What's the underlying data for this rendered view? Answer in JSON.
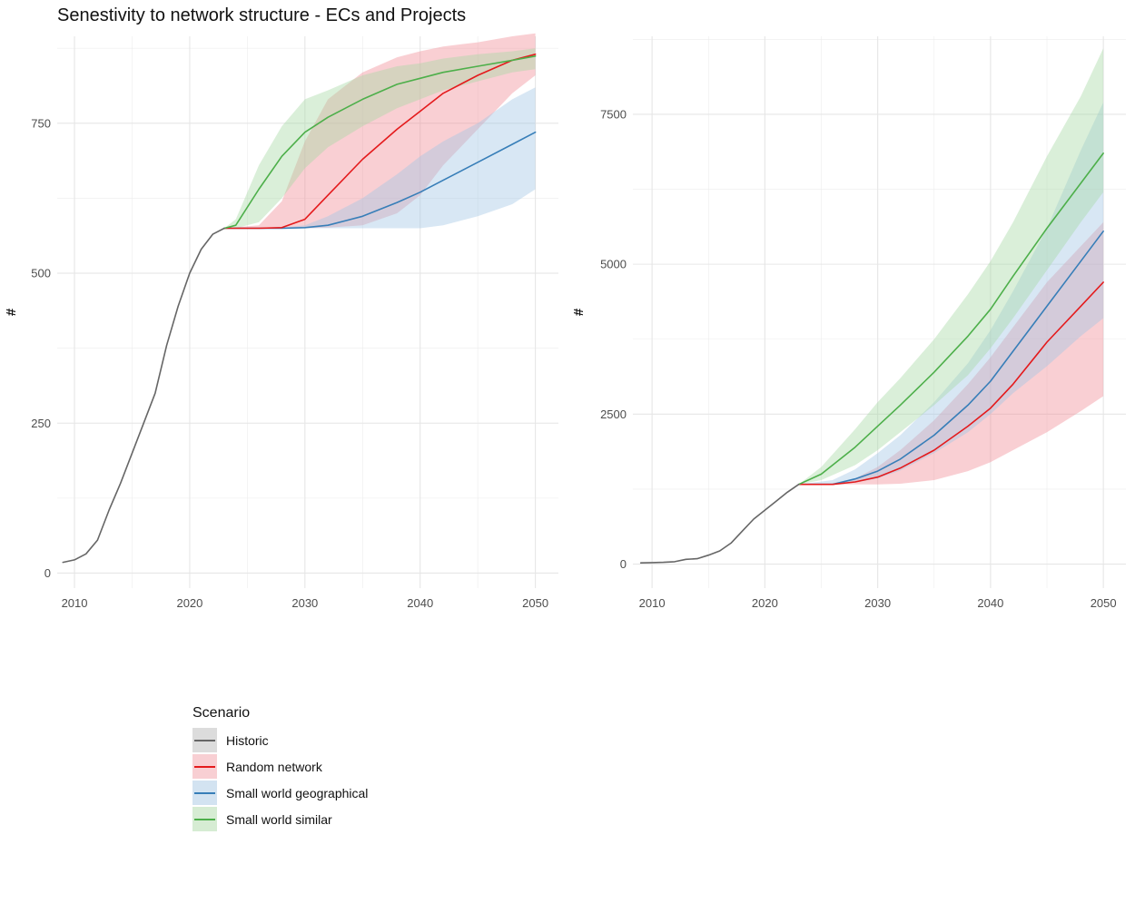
{
  "title": "Senestivity to network structure - ECs and Projects",
  "legend": {
    "title": "Scenario",
    "items": [
      {
        "label": "Historic",
        "color": "#666666",
        "fill": "#dcdcdc"
      },
      {
        "label": "Random network",
        "color": "#e41a1c",
        "fill": "#f8cfd3"
      },
      {
        "label": "Small world geographical",
        "color": "#377eb8",
        "fill": "#d3e3f1"
      },
      {
        "label": "Small world similar",
        "color": "#4daf4a",
        "fill": "#d6ecd3"
      }
    ]
  },
  "chart_data": [
    {
      "type": "line",
      "title": "Senestivity to network structure - ECs and Projects",
      "xlabel": "",
      "ylabel": "#",
      "xlim": [
        2008.5,
        2052
      ],
      "ylim": [
        -25,
        895
      ],
      "xticks": [
        2010,
        2020,
        2030,
        2040,
        2050
      ],
      "yticks": [
        0,
        250,
        500,
        750
      ],
      "grid": true,
      "series": [
        {
          "name": "Historic",
          "color": "#666666",
          "x": [
            2009,
            2010,
            2011,
            2012,
            2013,
            2014,
            2015,
            2016,
            2017,
            2018,
            2019,
            2020,
            2021,
            2022,
            2023
          ],
          "y": [
            18,
            22,
            32,
            55,
            105,
            150,
            200,
            250,
            300,
            380,
            445,
            500,
            540,
            565,
            575
          ]
        },
        {
          "name": "Random network",
          "color": "#e41a1c",
          "x": [
            2023,
            2026,
            2028,
            2030,
            2032,
            2035,
            2038,
            2040,
            2042,
            2045,
            2048,
            2050
          ],
          "y": [
            575,
            575,
            576,
            590,
            630,
            690,
            740,
            770,
            800,
            830,
            855,
            865
          ],
          "lower": [
            575,
            575,
            575,
            575,
            576,
            580,
            600,
            630,
            680,
            740,
            800,
            830
          ],
          "upper": [
            575,
            580,
            620,
            720,
            790,
            835,
            860,
            870,
            878,
            885,
            895,
            900
          ]
        },
        {
          "name": "Small world geographical",
          "color": "#377eb8",
          "x": [
            2023,
            2026,
            2028,
            2030,
            2032,
            2035,
            2038,
            2040,
            2042,
            2045,
            2048,
            2050
          ],
          "y": [
            575,
            575,
            575,
            576,
            580,
            595,
            618,
            635,
            655,
            685,
            715,
            735
          ],
          "lower": [
            575,
            575,
            575,
            575,
            575,
            575,
            575,
            575,
            580,
            595,
            615,
            640
          ],
          "upper": [
            575,
            575,
            576,
            580,
            595,
            625,
            665,
            695,
            720,
            750,
            790,
            810
          ]
        },
        {
          "name": "Small world similar",
          "color": "#4daf4a",
          "x": [
            2023,
            2024,
            2026,
            2028,
            2030,
            2032,
            2035,
            2038,
            2040,
            2042,
            2045,
            2048,
            2050
          ],
          "y": [
            575,
            580,
            640,
            695,
            735,
            760,
            790,
            815,
            825,
            835,
            845,
            855,
            862
          ],
          "lower": [
            575,
            575,
            585,
            625,
            675,
            710,
            745,
            775,
            790,
            805,
            820,
            835,
            840
          ],
          "upper": [
            575,
            590,
            680,
            745,
            790,
            805,
            830,
            845,
            850,
            858,
            865,
            870,
            875
          ]
        }
      ]
    },
    {
      "type": "line",
      "title": "",
      "xlabel": "",
      "ylabel": "#",
      "xlim": [
        2008.3,
        2052
      ],
      "ylim": [
        -400,
        8800
      ],
      "xticks": [
        2010,
        2020,
        2030,
        2040,
        2050
      ],
      "yticks": [
        0,
        2500,
        5000,
        7500
      ],
      "grid": true,
      "series": [
        {
          "name": "Historic",
          "color": "#666666",
          "x": [
            2009,
            2010,
            2011,
            2012,
            2013,
            2014,
            2015,
            2016,
            2017,
            2018,
            2019,
            2020,
            2021,
            2022,
            2023
          ],
          "y": [
            20,
            25,
            30,
            40,
            80,
            90,
            150,
            220,
            350,
            550,
            750,
            900,
            1050,
            1200,
            1330
          ]
        },
        {
          "name": "Random network",
          "color": "#e41a1c",
          "x": [
            2023,
            2026,
            2028,
            2030,
            2032,
            2035,
            2038,
            2040,
            2042,
            2045,
            2048,
            2050
          ],
          "y": [
            1330,
            1330,
            1370,
            1450,
            1600,
            1900,
            2300,
            2600,
            3000,
            3700,
            4300,
            4700
          ],
          "lower": [
            1330,
            1330,
            1330,
            1330,
            1340,
            1400,
            1550,
            1700,
            1900,
            2200,
            2550,
            2800
          ],
          "upper": [
            1330,
            1330,
            1430,
            1620,
            1900,
            2400,
            3000,
            3450,
            3950,
            4700,
            5300,
            5700
          ]
        },
        {
          "name": "Small world geographical",
          "color": "#377eb8",
          "x": [
            2023,
            2026,
            2028,
            2030,
            2032,
            2035,
            2038,
            2040,
            2042,
            2045,
            2048,
            2050
          ],
          "y": [
            1330,
            1330,
            1420,
            1550,
            1750,
            2150,
            2650,
            3050,
            3550,
            4300,
            5050,
            5550
          ],
          "lower": [
            1330,
            1330,
            1360,
            1430,
            1560,
            1850,
            2200,
            2500,
            2850,
            3300,
            3800,
            4100
          ],
          "upper": [
            1330,
            1400,
            1580,
            1850,
            2150,
            2700,
            3350,
            3900,
            4550,
            5600,
            6900,
            7700
          ]
        },
        {
          "name": "Small world similar",
          "color": "#4daf4a",
          "x": [
            2023,
            2025,
            2028,
            2030,
            2032,
            2035,
            2038,
            2040,
            2042,
            2045,
            2048,
            2050
          ],
          "y": [
            1330,
            1500,
            1950,
            2300,
            2650,
            3200,
            3800,
            4250,
            4800,
            5600,
            6350,
            6850
          ],
          "lower": [
            1330,
            1400,
            1650,
            1900,
            2200,
            2650,
            3150,
            3600,
            4100,
            4900,
            5700,
            6200
          ],
          "upper": [
            1330,
            1620,
            2250,
            2700,
            3100,
            3750,
            4500,
            5050,
            5700,
            6800,
            7800,
            8600
          ]
        }
      ]
    }
  ]
}
